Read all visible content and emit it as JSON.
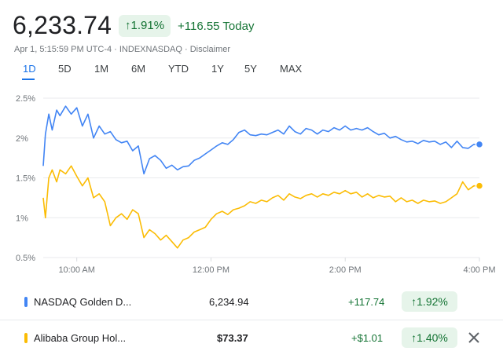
{
  "header": {
    "price": "6,233.74",
    "change_pct": "1.91%",
    "change_abs": "+116.55 Today",
    "meta": "Apr 1, 5:15:59 PM UTC-4 · INDEXNASDAQ · Disclaimer"
  },
  "tabs": [
    "1D",
    "5D",
    "1M",
    "6M",
    "YTD",
    "1Y",
    "5Y",
    "MAX"
  ],
  "active_tab": "1D",
  "colors": {
    "blue": "#4285f4",
    "yellow": "#fbbc04",
    "green": "#137333",
    "green_bg": "#e6f4ea",
    "grid": "#e8eaed"
  },
  "chart_data": {
    "type": "line",
    "y_tick_labels": [
      "2.5%",
      "2%",
      "1.5%",
      "1%",
      "0.5%"
    ],
    "y_ticks": [
      2.5,
      2.0,
      1.5,
      1.0,
      0.5
    ],
    "ylim": [
      0.5,
      2.5
    ],
    "x_tick_labels": [
      "10:00 AM",
      "12:00 PM",
      "2:00 PM",
      "4:00 PM"
    ],
    "x_ticks_minutes": [
      600,
      720,
      840,
      960
    ],
    "xlim_minutes": [
      570,
      960
    ],
    "grid": true,
    "series": [
      {
        "color": "#4285f4",
        "x": [
          570,
          572,
          575,
          578,
          582,
          585,
          590,
          595,
          600,
          605,
          610,
          615,
          620,
          625,
          630,
          635,
          640,
          645,
          650,
          655,
          660,
          665,
          670,
          675,
          680,
          685,
          690,
          695,
          700,
          705,
          710,
          715,
          720,
          725,
          730,
          735,
          740,
          745,
          750,
          755,
          760,
          765,
          770,
          775,
          780,
          785,
          790,
          795,
          800,
          805,
          810,
          815,
          820,
          825,
          830,
          835,
          840,
          845,
          850,
          855,
          860,
          865,
          870,
          875,
          880,
          885,
          890,
          895,
          900,
          905,
          910,
          915,
          920,
          925,
          930,
          935,
          940,
          945,
          950,
          955,
          960
        ],
        "values": [
          1.65,
          2.05,
          2.3,
          2.1,
          2.35,
          2.28,
          2.4,
          2.3,
          2.38,
          2.15,
          2.3,
          2.0,
          2.15,
          2.05,
          2.08,
          1.98,
          1.94,
          1.96,
          1.84,
          1.9,
          1.55,
          1.74,
          1.78,
          1.72,
          1.62,
          1.66,
          1.6,
          1.64,
          1.65,
          1.72,
          1.75,
          1.8,
          1.85,
          1.9,
          1.94,
          1.92,
          1.98,
          2.07,
          2.1,
          2.04,
          2.03,
          2.05,
          2.04,
          2.07,
          2.1,
          2.05,
          2.15,
          2.08,
          2.05,
          2.12,
          2.1,
          2.05,
          2.1,
          2.08,
          2.13,
          2.1,
          2.15,
          2.1,
          2.12,
          2.1,
          2.13,
          2.08,
          2.04,
          2.06,
          2.0,
          2.02,
          1.98,
          1.95,
          1.96,
          1.93,
          1.97,
          1.95,
          1.96,
          1.92,
          1.95,
          1.88,
          1.96,
          1.88,
          1.87,
          1.92,
          1.92
        ]
      },
      {
        "color": "#fbbc04",
        "x": [
          570,
          572,
          575,
          578,
          582,
          585,
          590,
          595,
          600,
          605,
          610,
          615,
          620,
          625,
          630,
          635,
          640,
          645,
          650,
          655,
          660,
          665,
          670,
          675,
          680,
          685,
          690,
          695,
          700,
          705,
          710,
          715,
          720,
          725,
          730,
          735,
          740,
          745,
          750,
          755,
          760,
          765,
          770,
          775,
          780,
          785,
          790,
          795,
          800,
          805,
          810,
          815,
          820,
          825,
          830,
          835,
          840,
          845,
          850,
          855,
          860,
          865,
          870,
          875,
          880,
          885,
          890,
          895,
          900,
          905,
          910,
          915,
          920,
          925,
          930,
          935,
          940,
          945,
          950,
          955,
          960
        ],
        "values": [
          1.25,
          1.0,
          1.5,
          1.6,
          1.45,
          1.6,
          1.55,
          1.65,
          1.52,
          1.4,
          1.5,
          1.25,
          1.3,
          1.2,
          0.9,
          1.0,
          1.05,
          0.98,
          1.1,
          1.05,
          0.75,
          0.85,
          0.8,
          0.72,
          0.78,
          0.7,
          0.62,
          0.72,
          0.75,
          0.82,
          0.85,
          0.88,
          0.98,
          1.05,
          1.08,
          1.04,
          1.1,
          1.12,
          1.15,
          1.2,
          1.18,
          1.22,
          1.2,
          1.25,
          1.28,
          1.22,
          1.3,
          1.26,
          1.24,
          1.28,
          1.3,
          1.26,
          1.3,
          1.28,
          1.32,
          1.3,
          1.34,
          1.3,
          1.32,
          1.26,
          1.3,
          1.25,
          1.28,
          1.26,
          1.27,
          1.2,
          1.25,
          1.2,
          1.22,
          1.18,
          1.22,
          1.2,
          1.21,
          1.18,
          1.2,
          1.25,
          1.3,
          1.45,
          1.35,
          1.4,
          1.4
        ]
      }
    ]
  },
  "holdings": [
    {
      "name": "NASDAQ Golden D...",
      "value": "6,234.94",
      "change_abs": "+117.74",
      "change_pct": "1.92%",
      "color": "#4285f4"
    },
    {
      "name": "Alibaba Group Hol...",
      "value": "$73.37",
      "change_abs": "+$1.01",
      "change_pct": "1.40%",
      "color": "#fbbc04"
    }
  ],
  "icons": {
    "up_arrow": "arrow-up-icon",
    "close": "close-icon"
  }
}
